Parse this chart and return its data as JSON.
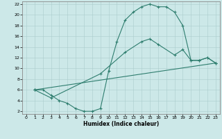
{
  "title": "",
  "xlabel": "Humidex (Indice chaleur)",
  "bg_color": "#cce8e8",
  "line_color": "#2e7d6e",
  "xlim": [
    -0.5,
    23.5
  ],
  "ylim": [
    1.5,
    22.5
  ],
  "xticks": [
    0,
    1,
    2,
    3,
    4,
    5,
    6,
    7,
    8,
    9,
    10,
    11,
    12,
    13,
    14,
    15,
    16,
    17,
    18,
    19,
    20,
    21,
    22,
    23
  ],
  "yticks": [
    2,
    4,
    6,
    8,
    10,
    12,
    14,
    16,
    18,
    20,
    22
  ],
  "curve1_x": [
    1,
    2,
    3,
    4,
    5,
    6,
    7,
    8,
    9,
    10,
    11,
    12,
    13,
    14,
    15,
    16,
    17,
    18,
    19,
    20,
    21,
    22,
    23
  ],
  "curve1_y": [
    6,
    6,
    5,
    4,
    3.5,
    2.5,
    2,
    2,
    2.5,
    9.5,
    15,
    19,
    20.5,
    21.5,
    22,
    21.5,
    21.5,
    20.5,
    18,
    11.5,
    11.5,
    12,
    11
  ],
  "curve2_x": [
    1,
    3,
    9,
    12,
    14,
    15,
    16,
    18,
    19,
    20,
    21,
    22,
    23
  ],
  "curve2_y": [
    6,
    4.5,
    9,
    13,
    15,
    15.5,
    14.5,
    12.5,
    13.5,
    11.5,
    11.5,
    12,
    11
  ],
  "curve3_x": [
    1,
    23
  ],
  "curve3_y": [
    6,
    11
  ]
}
